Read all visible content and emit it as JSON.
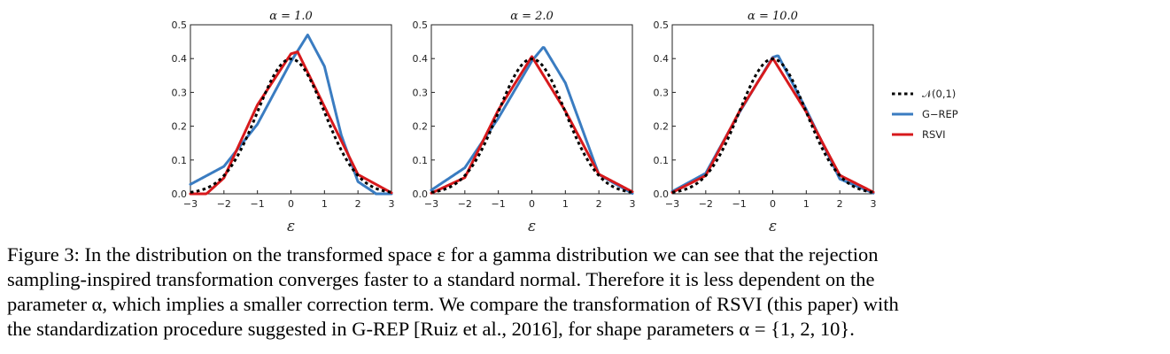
{
  "chart_data": [
    {
      "type": "line",
      "title": "α = 1.0",
      "xlabel": "ε",
      "xlim": [
        -3,
        3
      ],
      "ylim": [
        0,
        0.5
      ],
      "xticks": [
        "−3",
        "−2",
        "−1",
        "0",
        "1",
        "2",
        "3"
      ],
      "yticks": [
        "0.0",
        "0.1",
        "0.2",
        "0.3",
        "0.4",
        "0.5"
      ],
      "grid": false,
      "series": [
        {
          "name": "𝒩(0,1)",
          "color": "#000000",
          "style": "dotted",
          "mu": 0,
          "sigma": 1,
          "x": [
            -3,
            -2,
            -1,
            0,
            1,
            2,
            3
          ],
          "y": [
            0.004,
            0.054,
            0.242,
            0.399,
            0.242,
            0.054,
            0.004
          ]
        },
        {
          "name": "G−REP",
          "color": "#3a7cc1",
          "style": "solid",
          "shape": 1.0,
          "x": [
            -3,
            -2,
            -1,
            0,
            0.5,
            1,
            1.5,
            2,
            2.5
          ],
          "y": [
            0.028,
            0.081,
            0.206,
            0.391,
            0.47,
            0.377,
            0.174,
            0.036,
            0.003
          ]
        },
        {
          "name": "RSVI",
          "color": "#d7191c",
          "style": "solid",
          "shape": 1.0,
          "x": [
            -2.5,
            -2,
            -1,
            0,
            0.2,
            1,
            2,
            3
          ],
          "y": [
            0.002,
            0.047,
            0.263,
            0.414,
            0.42,
            0.258,
            0.057,
            0.003
          ]
        }
      ]
    },
    {
      "type": "line",
      "title": "α = 2.0",
      "xlabel": "ε",
      "xlim": [
        -3,
        3
      ],
      "ylim": [
        0,
        0.5
      ],
      "xticks": [
        "−3",
        "−2",
        "−1",
        "0",
        "1",
        "2",
        "3"
      ],
      "yticks": [
        "0.0",
        "0.1",
        "0.2",
        "0.3",
        "0.4",
        "0.5"
      ],
      "grid": false,
      "series": [
        {
          "name": "𝒩(0,1)",
          "color": "#000000",
          "style": "dotted",
          "mu": 0,
          "sigma": 1,
          "x": [
            -3,
            -2,
            -1,
            0,
            1,
            2,
            3
          ],
          "y": [
            0.004,
            0.054,
            0.242,
            0.399,
            0.242,
            0.054,
            0.004
          ]
        },
        {
          "name": "G−REP",
          "color": "#3a7cc1",
          "style": "solid",
          "shape": 2.0,
          "x": [
            -3,
            -2,
            -1,
            0,
            0.35,
            1,
            2,
            3
          ],
          "y": [
            0.011,
            0.077,
            0.224,
            0.393,
            0.435,
            0.328,
            0.057,
            0.001
          ]
        },
        {
          "name": "RSVI",
          "color": "#d7191c",
          "style": "solid",
          "shape": 2.0,
          "x": [
            -3,
            -2,
            -1,
            0,
            1,
            2,
            3
          ],
          "y": [
            0.002,
            0.048,
            0.248,
            0.406,
            0.245,
            0.058,
            0.006
          ]
        }
      ]
    },
    {
      "type": "line",
      "title": "α = 10.0",
      "xlabel": "ε",
      "xlim": [
        -3,
        3
      ],
      "ylim": [
        0,
        0.5
      ],
      "xticks": [
        "−3",
        "−2",
        "−1",
        "0",
        "1",
        "2",
        "3"
      ],
      "yticks": [
        "0.0",
        "0.1",
        "0.2",
        "0.3",
        "0.4",
        "0.5"
      ],
      "grid": false,
      "series": [
        {
          "name": "𝒩(0,1)",
          "color": "#000000",
          "style": "dotted",
          "mu": 0,
          "sigma": 1,
          "x": [
            -3,
            -2,
            -1,
            0,
            1,
            2,
            3
          ],
          "y": [
            0.004,
            0.054,
            0.242,
            0.399,
            0.242,
            0.054,
            0.004
          ]
        },
        {
          "name": "G−REP",
          "color": "#3a7cc1",
          "style": "solid",
          "shape": 10.0,
          "x": [
            -3,
            -2,
            -1,
            0,
            0.16,
            1,
            2,
            3
          ],
          "y": [
            0.007,
            0.061,
            0.24,
            0.404,
            0.409,
            0.249,
            0.044,
            0.002
          ]
        },
        {
          "name": "RSVI",
          "color": "#d7191c",
          "style": "solid",
          "shape": 10.0,
          "x": [
            -3,
            -2,
            -1,
            0,
            1,
            2,
            3
          ],
          "y": [
            0.004,
            0.054,
            0.243,
            0.401,
            0.242,
            0.055,
            0.005
          ]
        }
      ]
    }
  ],
  "legend": {
    "position": "right",
    "entries": [
      {
        "label": "𝒩(0,1)",
        "color": "#000000",
        "style": "dotted"
      },
      {
        "label": "G−REP",
        "color": "#3a7cc1",
        "style": "solid"
      },
      {
        "label": "RSVI",
        "color": "#d7191c",
        "style": "solid"
      }
    ]
  },
  "caption": {
    "lines": [
      "Figure 3: In the distribution on the transformed space ε for a gamma distribution we can see that the rejection",
      "sampling-inspired transformation converges faster to a standard normal.  Therefore it is less dependent on the",
      "parameter α, which implies a smaller correction term.  We compare the transformation of RSVI (this paper) with",
      "the standardization procedure suggested in G-REP [Ruiz et al., 2016], for shape parameters α = {1, 2, 10}."
    ]
  }
}
